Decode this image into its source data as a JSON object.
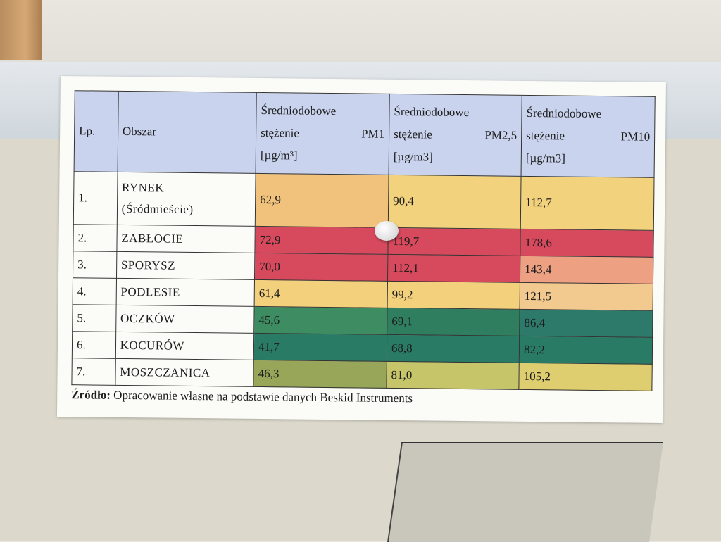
{
  "table": {
    "header": [
      [
        "Lp."
      ],
      [
        "Obszar"
      ],
      [
        "Średniodobowe",
        "stężenie PM1",
        "[µg/m³]"
      ],
      [
        "Średniodobowe",
        "stężenie PM2,5",
        "[µg/m3]"
      ],
      [
        "Średniodobowe",
        "stężenie PM10",
        "[µg/m3]"
      ]
    ],
    "rows": [
      [
        "1.",
        [
          "RYNEK",
          "(Śródmieście)"
        ],
        "62,9",
        "90,4",
        "112,7"
      ],
      [
        "2.",
        "ZABŁOCIE",
        "72,9",
        "119,7",
        "178,6"
      ],
      [
        "3.",
        "SPORYSZ",
        "70,0",
        "112,1",
        "143,4"
      ],
      [
        "4.",
        "PODLESIE",
        "61,4",
        "99,2",
        "121,5"
      ],
      [
        "5.",
        "OCZKÓW",
        "45,6",
        "69,1",
        "86,4"
      ],
      [
        "6.",
        "KOCURÓW",
        "41,7",
        "68,8",
        "82,2"
      ],
      [
        "7.",
        "MOSZCZANICA",
        "46,3",
        "81,0",
        "105,2"
      ]
    ]
  },
  "source": {
    "label": "Źródło:",
    "text": "Opracowanie własne na podstawie danych Beskid Instruments"
  }
}
